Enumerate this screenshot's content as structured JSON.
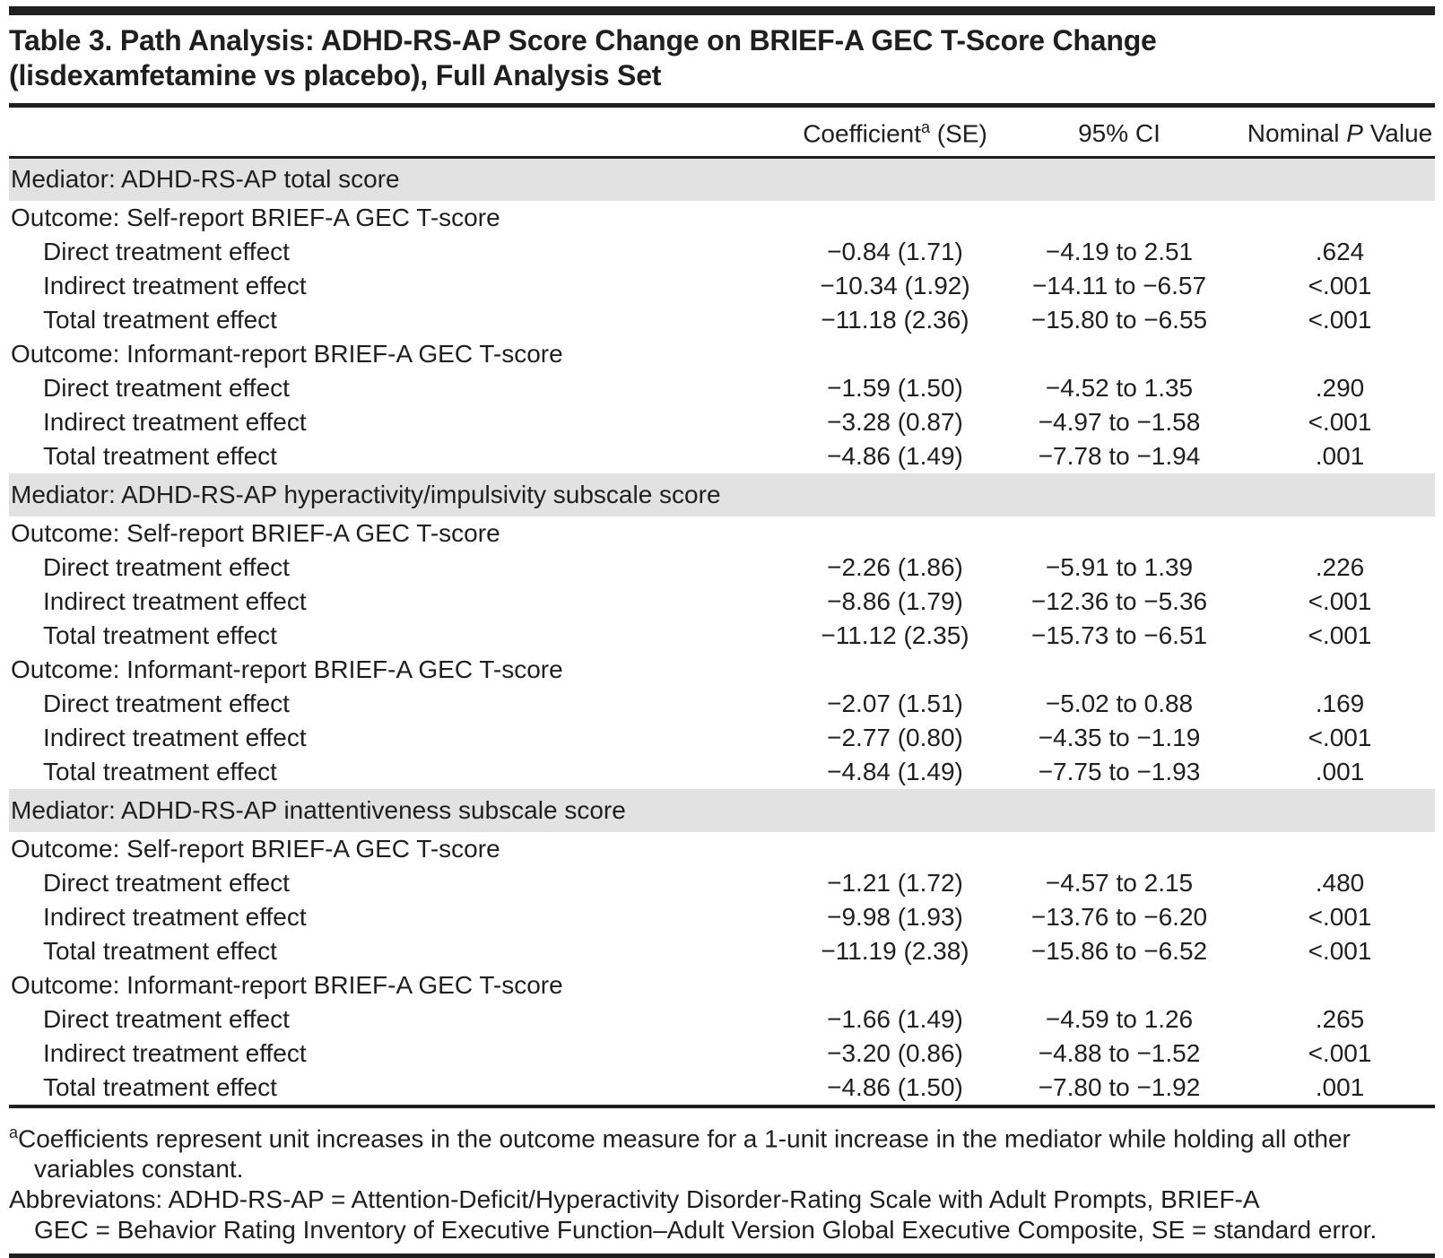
{
  "title": {
    "line1": "Table 3. Path Analysis: ADHD-RS-AP Score Change on BRIEF-A GEC T-Score Change",
    "line2": "(lisdexamfetamine vs placebo), Full Analysis Set"
  },
  "table": {
    "header": {
      "label": "",
      "coef_pre": "Coefficient",
      "coef_sup": "a",
      "coef_post": " (SE)",
      "ci": "95% CI",
      "p_pre": "Nominal ",
      "p_italic": "P",
      "p_post": " Value"
    },
    "sections": [
      {
        "mediator": "Mediator: ADHD-RS-AP total score",
        "groups": [
          {
            "outcome": "Outcome: Self-report BRIEF-A GEC T-score",
            "rows": [
              {
                "label": "Direct treatment effect",
                "coef": "−0.84 (1.71)",
                "ci": "−4.19 to 2.51",
                "p": ".624"
              },
              {
                "label": "Indirect treatment effect",
                "coef": "−10.34 (1.92)",
                "ci": "−14.11 to −6.57",
                "p": "<.001"
              },
              {
                "label": "Total treatment effect",
                "coef": "−11.18 (2.36)",
                "ci": "−15.80 to −6.55",
                "p": "<.001"
              }
            ]
          },
          {
            "outcome": "Outcome: Informant-report BRIEF-A GEC T-score",
            "rows": [
              {
                "label": "Direct treatment effect",
                "coef": "−1.59 (1.50)",
                "ci": "−4.52 to 1.35",
                "p": ".290"
              },
              {
                "label": "Indirect treatment effect",
                "coef": "−3.28 (0.87)",
                "ci": "−4.97 to −1.58",
                "p": "<.001"
              },
              {
                "label": "Total treatment effect",
                "coef": "−4.86 (1.49)",
                "ci": "−7.78 to −1.94",
                "p": ".001"
              }
            ]
          }
        ]
      },
      {
        "mediator": "Mediator: ADHD-RS-AP hyperactivity/impulsivity subscale score",
        "groups": [
          {
            "outcome": "Outcome: Self-report BRIEF-A GEC T-score",
            "rows": [
              {
                "label": "Direct treatment effect",
                "coef": "−2.26 (1.86)",
                "ci": "−5.91 to 1.39",
                "p": ".226"
              },
              {
                "label": "Indirect treatment effect",
                "coef": "−8.86 (1.79)",
                "ci": "−12.36 to −5.36",
                "p": "<.001"
              },
              {
                "label": "Total treatment effect",
                "coef": "−11.12 (2.35)",
                "ci": "−15.73 to −6.51",
                "p": "<.001"
              }
            ]
          },
          {
            "outcome": "Outcome: Informant-report BRIEF-A GEC T-score",
            "rows": [
              {
                "label": "Direct treatment effect",
                "coef": "−2.07 (1.51)",
                "ci": "−5.02 to 0.88",
                "p": ".169"
              },
              {
                "label": "Indirect treatment effect",
                "coef": "−2.77 (0.80)",
                "ci": "−4.35 to −1.19",
                "p": "<.001"
              },
              {
                "label": "Total treatment effect",
                "coef": "−4.84 (1.49)",
                "ci": "−7.75 to −1.93",
                "p": ".001"
              }
            ]
          }
        ]
      },
      {
        "mediator": "Mediator: ADHD-RS-AP inattentiveness subscale score",
        "groups": [
          {
            "outcome": "Outcome: Self-report BRIEF-A GEC T-score",
            "rows": [
              {
                "label": "Direct treatment effect",
                "coef": "−1.21 (1.72)",
                "ci": "−4.57 to 2.15",
                "p": ".480"
              },
              {
                "label": "Indirect treatment effect",
                "coef": "−9.98 (1.93)",
                "ci": "−13.76 to −6.20",
                "p": "<.001"
              },
              {
                "label": "Total treatment effect",
                "coef": "−11.19 (2.38)",
                "ci": "−15.86 to −6.52",
                "p": "<.001"
              }
            ]
          },
          {
            "outcome": "Outcome: Informant-report BRIEF-A GEC T-score",
            "rows": [
              {
                "label": "Direct treatment effect",
                "coef": "−1.66 (1.49)",
                "ci": "−4.59 to 1.26",
                "p": ".265"
              },
              {
                "label": "Indirect treatment effect",
                "coef": "−3.20 (0.86)",
                "ci": "−4.88 to −1.52",
                "p": "<.001"
              },
              {
                "label": "Total treatment effect",
                "coef": "−4.86 (1.50)",
                "ci": "−7.80 to −1.92",
                "p": ".001"
              }
            ]
          }
        ]
      }
    ]
  },
  "footnotes": {
    "a_sup": "a",
    "a_line1": "Coefficients represent unit increases in the outcome measure for a 1-unit increase in the mediator while holding all other",
    "a_line2": "variables constant.",
    "abbr_line1": "Abbreviatons: ADHD-RS-AP = Attention-Deficit/Hyperactivity Disorder-Rating Scale with Adult Prompts, BRIEF-A",
    "abbr_line2": "GEC = Behavior Rating Inventory of Executive Function–Adult Version Global Executive Composite, SE = standard error."
  },
  "colors": {
    "text": "#1f1f1f",
    "mediator_band": "#e2e2e2"
  }
}
